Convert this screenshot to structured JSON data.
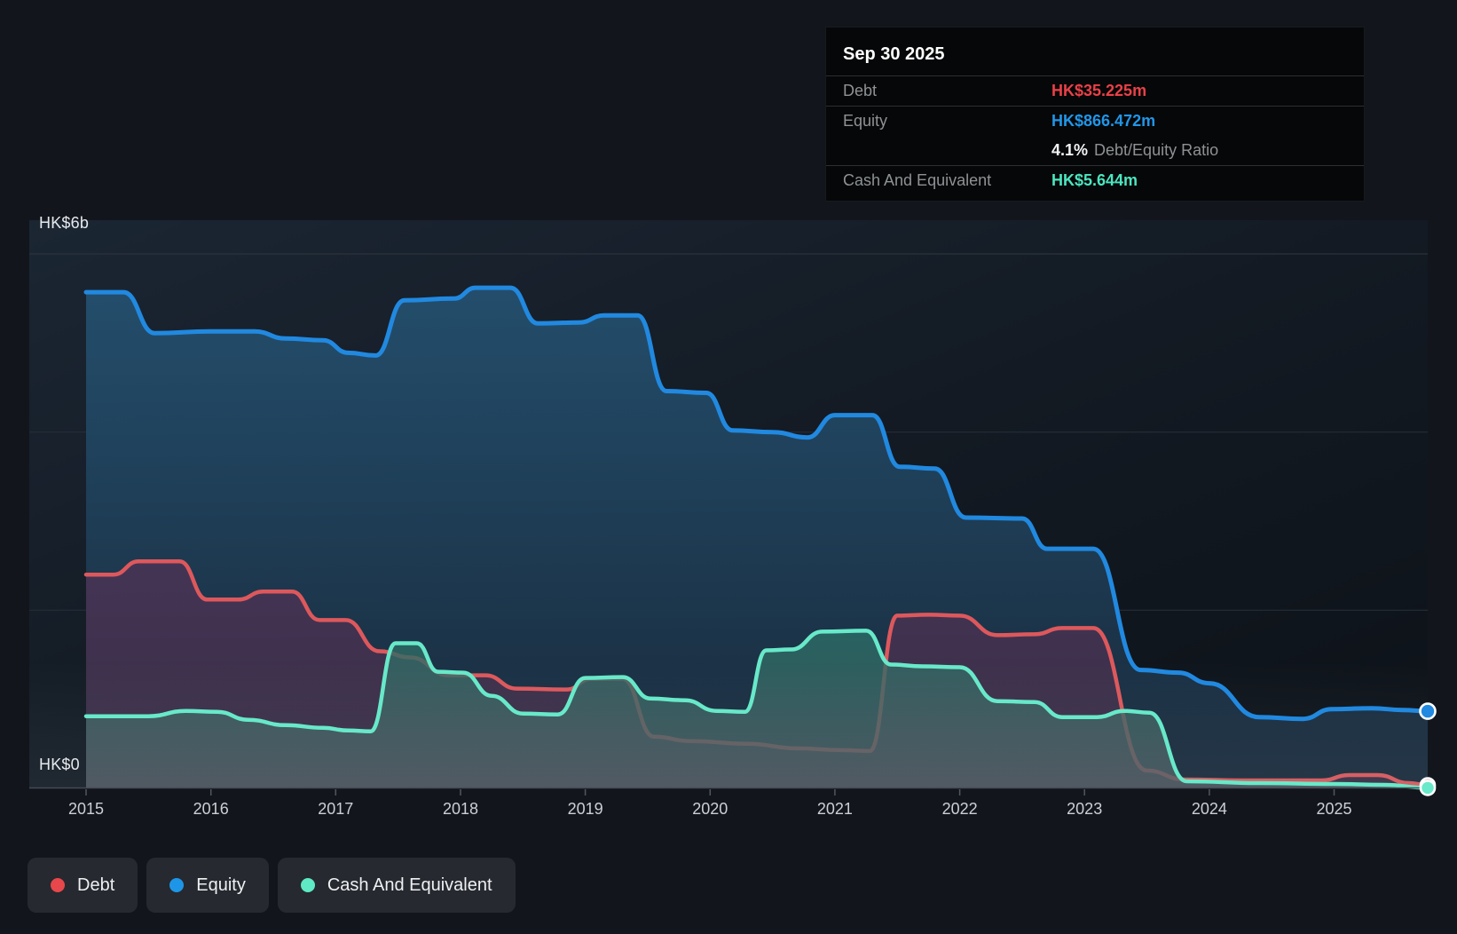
{
  "axis": {
    "y_top_label": "HK$6b",
    "y_bottom_label": "HK$0",
    "x_ticks": [
      "2015",
      "2016",
      "2017",
      "2018",
      "2019",
      "2020",
      "2021",
      "2022",
      "2023",
      "2024",
      "2025"
    ]
  },
  "colors": {
    "debt": "#ea4048",
    "equity": "#2196e8",
    "cash": "#4ce5c0",
    "debt_line": "#dd585c",
    "equity_line": "#2189e0",
    "cash_line": "#68e9c9",
    "tooltip_bg": "#050708",
    "legend_chip_bg": "#26292f"
  },
  "tooltip": {
    "date": "Sep 30 2025",
    "debt_label": "Debt",
    "debt_value": "HK$35.225m",
    "equity_label": "Equity",
    "equity_value": "HK$866.472m",
    "ratio_value": "4.1%",
    "ratio_label": "Debt/Equity Ratio",
    "cash_label": "Cash And Equivalent",
    "cash_value": "HK$5.644m"
  },
  "legend": {
    "items": [
      {
        "label": "Debt",
        "color": "#e8474b"
      },
      {
        "label": "Equity",
        "color": "#1e96e8"
      },
      {
        "label": "Cash And Equivalent",
        "color": "#5fe9c5"
      }
    ]
  },
  "chart_data": {
    "type": "area",
    "unit": "HK$ billions",
    "x_range": [
      2015,
      2025.75
    ],
    "y_range": [
      0,
      6
    ],
    "y_gridlines_b": [
      6,
      4,
      2,
      0
    ],
    "grid": true,
    "legend_position": "bottom-left",
    "series": [
      {
        "name": "Equity",
        "color": "#2189e0",
        "fill_top": "#24506f",
        "fill_bottom": "#192a3c",
        "fill_opacity": 0.95,
        "points": [
          [
            2015.0,
            5.57
          ],
          [
            2015.3,
            5.57
          ],
          [
            2015.55,
            5.11
          ],
          [
            2016.0,
            5.13
          ],
          [
            2016.35,
            5.13
          ],
          [
            2016.6,
            5.05
          ],
          [
            2016.9,
            5.03
          ],
          [
            2017.1,
            4.89
          ],
          [
            2017.32,
            4.86
          ],
          [
            2017.55,
            5.48
          ],
          [
            2017.95,
            5.5
          ],
          [
            2018.12,
            5.62
          ],
          [
            2018.4,
            5.62
          ],
          [
            2018.62,
            5.22
          ],
          [
            2018.95,
            5.23
          ],
          [
            2019.15,
            5.31
          ],
          [
            2019.42,
            5.31
          ],
          [
            2019.65,
            4.46
          ],
          [
            2019.97,
            4.44
          ],
          [
            2020.18,
            4.02
          ],
          [
            2020.5,
            4.0
          ],
          [
            2020.78,
            3.94
          ],
          [
            2021.0,
            4.19
          ],
          [
            2021.3,
            4.19
          ],
          [
            2021.52,
            3.61
          ],
          [
            2021.8,
            3.59
          ],
          [
            2022.05,
            3.04
          ],
          [
            2022.5,
            3.03
          ],
          [
            2022.7,
            2.69
          ],
          [
            2023.07,
            2.69
          ],
          [
            2023.45,
            1.33
          ],
          [
            2023.75,
            1.3
          ],
          [
            2024.0,
            1.18
          ],
          [
            2024.4,
            0.8
          ],
          [
            2024.75,
            0.78
          ],
          [
            2024.98,
            0.89
          ],
          [
            2025.3,
            0.9
          ],
          [
            2025.55,
            0.88
          ],
          [
            2025.75,
            0.866
          ]
        ]
      },
      {
        "name": "Debt",
        "color": "#dd585c",
        "fill_top": "#5f3158",
        "fill_bottom": "#4c3049",
        "fill_opacity": 0.6,
        "points": [
          [
            2015.0,
            2.4
          ],
          [
            2015.22,
            2.4
          ],
          [
            2015.42,
            2.55
          ],
          [
            2015.75,
            2.55
          ],
          [
            2015.97,
            2.12
          ],
          [
            2016.22,
            2.12
          ],
          [
            2016.42,
            2.21
          ],
          [
            2016.65,
            2.21
          ],
          [
            2016.87,
            1.89
          ],
          [
            2017.08,
            1.89
          ],
          [
            2017.35,
            1.54
          ],
          [
            2017.6,
            1.47
          ],
          [
            2017.9,
            1.27
          ],
          [
            2018.2,
            1.27
          ],
          [
            2018.45,
            1.12
          ],
          [
            2018.85,
            1.11
          ],
          [
            2019.05,
            1.23
          ],
          [
            2019.3,
            1.23
          ],
          [
            2019.55,
            0.58
          ],
          [
            2019.85,
            0.53
          ],
          [
            2020.3,
            0.5
          ],
          [
            2020.7,
            0.45
          ],
          [
            2021.05,
            0.43
          ],
          [
            2021.28,
            0.42
          ],
          [
            2021.5,
            1.94
          ],
          [
            2021.75,
            1.95
          ],
          [
            2022.0,
            1.94
          ],
          [
            2022.3,
            1.72
          ],
          [
            2022.6,
            1.73
          ],
          [
            2022.82,
            1.8
          ],
          [
            2023.07,
            1.8
          ],
          [
            2023.5,
            0.2
          ],
          [
            2023.8,
            0.1
          ],
          [
            2024.3,
            0.09
          ],
          [
            2024.9,
            0.09
          ],
          [
            2025.12,
            0.15
          ],
          [
            2025.35,
            0.15
          ],
          [
            2025.6,
            0.06
          ],
          [
            2025.75,
            0.035
          ]
        ]
      },
      {
        "name": "Cash And Equivalent",
        "color": "#68e9c9",
        "fill_top": "#2a6e66",
        "fill_bottom": "#4e5a60",
        "fill_opacity": 0.8,
        "points": [
          [
            2015.0,
            0.81
          ],
          [
            2015.5,
            0.81
          ],
          [
            2015.8,
            0.87
          ],
          [
            2016.05,
            0.86
          ],
          [
            2016.3,
            0.77
          ],
          [
            2016.6,
            0.71
          ],
          [
            2016.9,
            0.68
          ],
          [
            2017.1,
            0.65
          ],
          [
            2017.28,
            0.64
          ],
          [
            2017.48,
            1.63
          ],
          [
            2017.65,
            1.63
          ],
          [
            2017.82,
            1.31
          ],
          [
            2018.02,
            1.3
          ],
          [
            2018.25,
            1.04
          ],
          [
            2018.5,
            0.84
          ],
          [
            2018.78,
            0.83
          ],
          [
            2019.0,
            1.24
          ],
          [
            2019.3,
            1.25
          ],
          [
            2019.52,
            1.01
          ],
          [
            2019.8,
            0.99
          ],
          [
            2020.05,
            0.87
          ],
          [
            2020.28,
            0.86
          ],
          [
            2020.45,
            1.55
          ],
          [
            2020.65,
            1.56
          ],
          [
            2020.9,
            1.76
          ],
          [
            2021.25,
            1.77
          ],
          [
            2021.45,
            1.39
          ],
          [
            2021.7,
            1.37
          ],
          [
            2022.0,
            1.36
          ],
          [
            2022.3,
            0.98
          ],
          [
            2022.6,
            0.97
          ],
          [
            2022.82,
            0.8
          ],
          [
            2023.1,
            0.8
          ],
          [
            2023.32,
            0.87
          ],
          [
            2023.52,
            0.85
          ],
          [
            2023.82,
            0.08
          ],
          [
            2024.4,
            0.06
          ],
          [
            2025.0,
            0.05
          ],
          [
            2025.4,
            0.04
          ],
          [
            2025.75,
            0.006
          ]
        ]
      }
    ]
  }
}
